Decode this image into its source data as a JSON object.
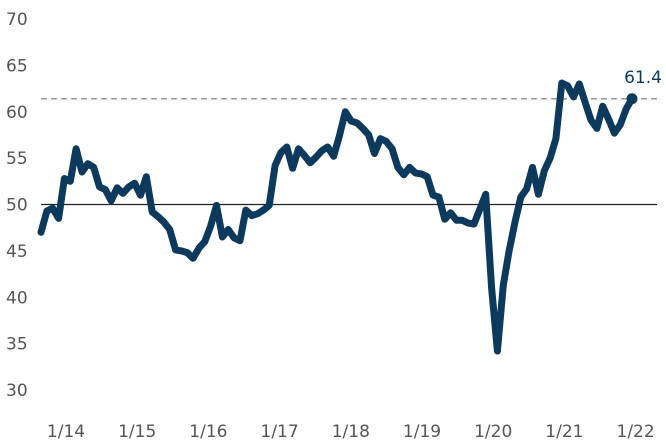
{
  "chart_data": {
    "type": "line",
    "ylim": [
      30,
      70
    ],
    "yticks": [
      "70",
      "65",
      "60",
      "55",
      "50",
      "45",
      "40",
      "35",
      "30"
    ],
    "xticks": [
      "1/14",
      "1/15",
      "1/16",
      "1/17",
      "1/18",
      "1/19",
      "1/20",
      "1/21",
      "1/22"
    ],
    "x_start": "2014-01",
    "x_end": "2022-03",
    "reference_line": 50,
    "last_value_label": "61.4",
    "dashed_line_value": 61.4,
    "series": [
      {
        "color": "#0d3a5c",
        "values": [
          47.0,
          49.3,
          49.6,
          48.5,
          52.8,
          52.5,
          56.0,
          53.5,
          54.4,
          54.0,
          51.9,
          51.6,
          50.4,
          51.8,
          51.2,
          51.9,
          52.3,
          51.0,
          53.0,
          49.2,
          48.7,
          48.1,
          47.3,
          45.1,
          45.0,
          44.8,
          44.2,
          45.3,
          46.0,
          47.7,
          49.9,
          46.5,
          47.3,
          46.4,
          46.1,
          49.4,
          48.8,
          49.0,
          49.4,
          49.9,
          54.2,
          55.6,
          56.2,
          53.9,
          56.0,
          55.3,
          54.5,
          55.1,
          55.8,
          56.2,
          55.2,
          57.4,
          60.0,
          59.0,
          58.8,
          58.2,
          57.5,
          55.5,
          57.1,
          56.8,
          56.0,
          54.0,
          53.2,
          54.0,
          53.4,
          53.3,
          53.0,
          51.0,
          50.8,
          48.4,
          49.1,
          48.3,
          48.3,
          48.0,
          47.9,
          49.5,
          51.1,
          41.0,
          34.2,
          41.3,
          45.0,
          48.1,
          50.8,
          51.7,
          54.0,
          51.1,
          53.6,
          55.0,
          57.1,
          63.1,
          62.8,
          61.6,
          63.0,
          61.0,
          59.1,
          58.2,
          60.6,
          59.2,
          57.7,
          58.6,
          60.3,
          61.4
        ]
      }
    ]
  }
}
